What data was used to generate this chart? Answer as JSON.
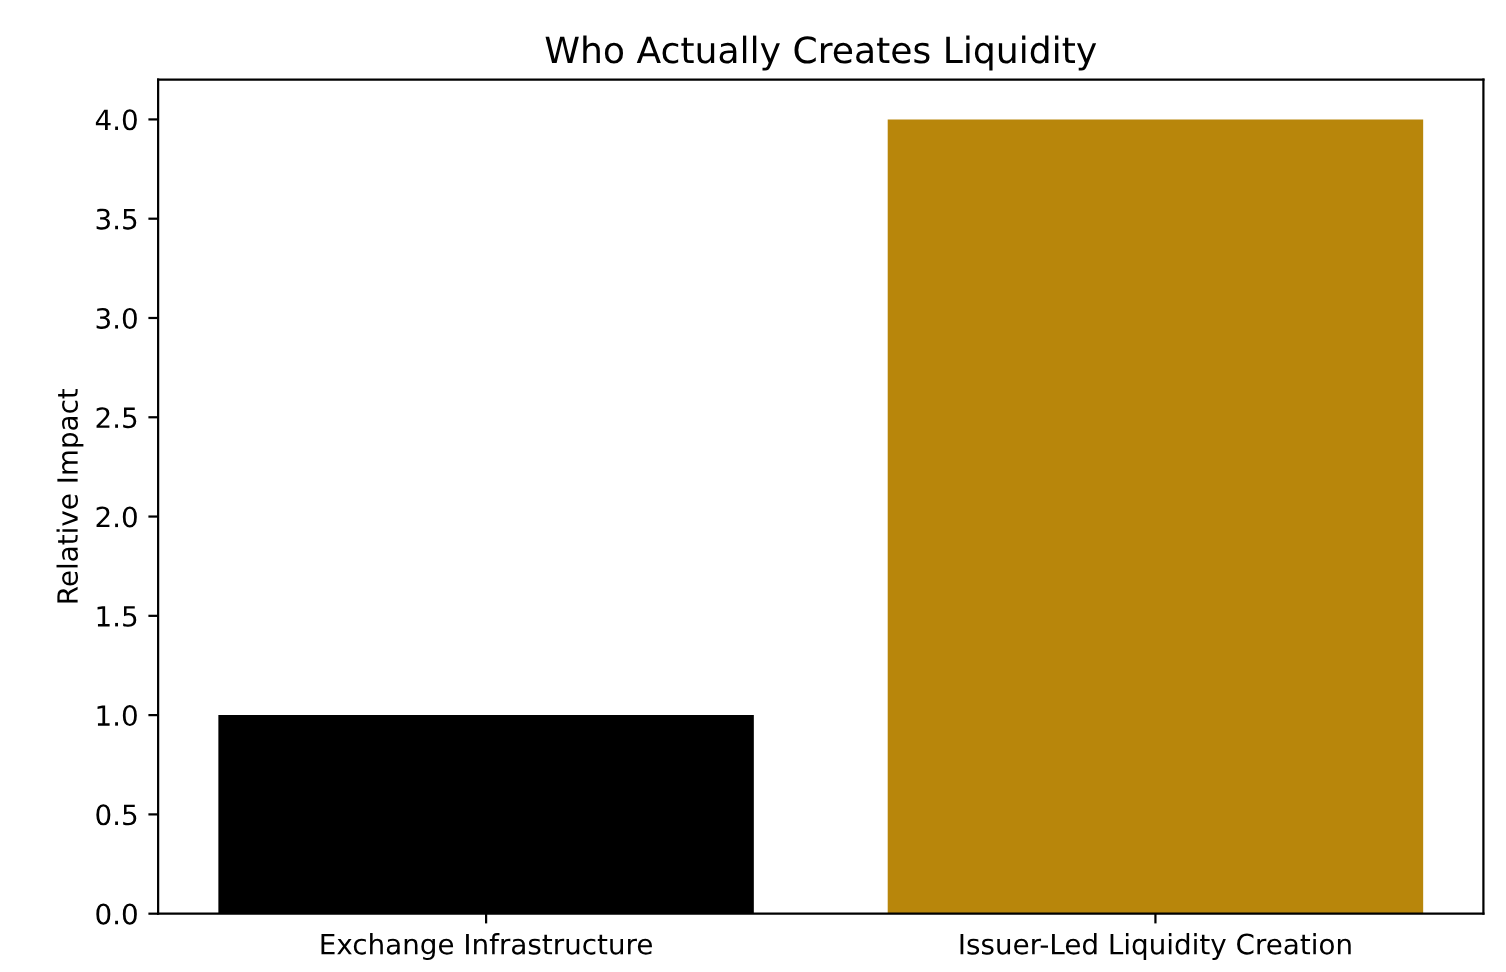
{
  "chart_data": {
    "type": "bar",
    "title": "Who Actually Creates Liquidity",
    "ylabel": "Relative Impact",
    "categories": [
      "Exchange Infrastructure",
      "Issuer-Led Liquidity Creation"
    ],
    "values": [
      1.0,
      4.0
    ],
    "colors": [
      "#000000",
      "#b8860b"
    ],
    "ylim": [
      0,
      4.2
    ],
    "yticks": [
      {
        "value": 0,
        "label": "0.0"
      },
      {
        "value": 0.5,
        "label": "0.5"
      },
      {
        "value": 1,
        "label": "1.0"
      },
      {
        "value": 1.5,
        "label": "1.5"
      },
      {
        "value": 2,
        "label": "2.0"
      },
      {
        "value": 2.5,
        "label": "2.5"
      },
      {
        "value": 3,
        "label": "3.0"
      },
      {
        "value": 3.5,
        "label": "3.5"
      },
      {
        "value": 4,
        "label": "4.0"
      }
    ],
    "grid": false
  }
}
